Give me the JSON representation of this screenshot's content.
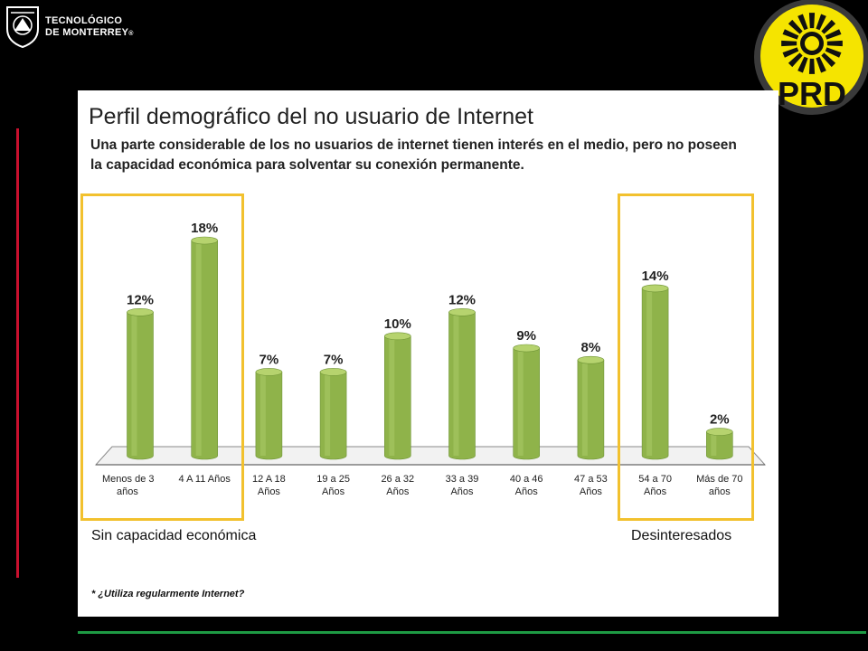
{
  "header": {
    "logo_line1": "TECNOLÓGICO",
    "logo_line2": "DE MONTERREY",
    "logo_mark": "®",
    "right_logo_text": "PRD"
  },
  "slide": {
    "title": "Perfil demográfico del no usuario de Internet",
    "subtitle": "Una parte considerable de los no usuarios de internet tienen interés en el medio, pero no poseen la capacidad económica para solventar  su conexión permanente.",
    "left_box_label": "Sin capacidad económica",
    "right_box_label": "Desinteresados",
    "footnote": "* ¿Utiliza regularmente Internet?"
  },
  "colors": {
    "bar_fill": "#8fb34a",
    "bar_top": "#b6d36e",
    "highlight": "#f2c12e",
    "accent_red": "#c8102e",
    "accent_green": "#1e9a44"
  },
  "chart_data": {
    "type": "bar",
    "categories": [
      [
        "Menos de 3",
        "años"
      ],
      [
        "4 A 11 Años"
      ],
      [
        "12 A 18",
        "Años"
      ],
      [
        "19 a 25",
        "Años"
      ],
      [
        "26 a 32",
        "Años"
      ],
      [
        "33 a 39",
        "Años"
      ],
      [
        "40 a 46",
        "Años"
      ],
      [
        "47 a 53",
        "Años"
      ],
      [
        "54 a 70",
        "Años"
      ],
      [
        "Más de 70",
        "años"
      ]
    ],
    "values": [
      12,
      18,
      7,
      7,
      10,
      12,
      9,
      8,
      14,
      2
    ],
    "value_labels": [
      "12%",
      "18%",
      "7%",
      "7%",
      "10%",
      "12%",
      "9%",
      "8%",
      "14%",
      "2%"
    ],
    "ylim": [
      0,
      18
    ],
    "highlighted_groups": [
      [
        0,
        1
      ],
      [
        8,
        9
      ]
    ]
  }
}
